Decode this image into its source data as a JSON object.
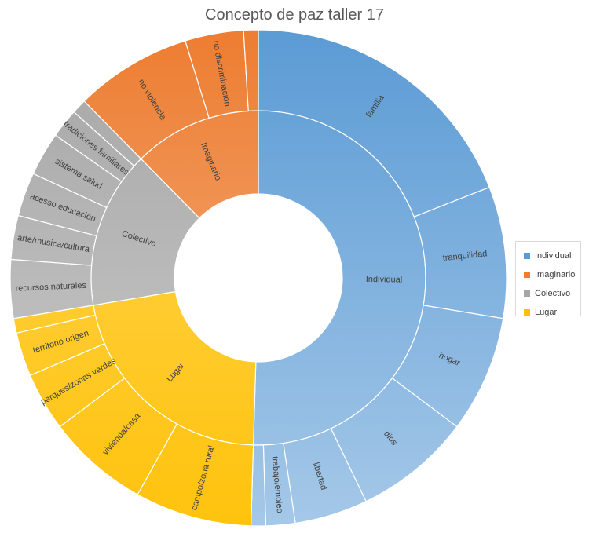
{
  "chart_data": {
    "type": "sunburst",
    "title": "Concepto de paz taller 17",
    "legend_position": "right",
    "categories": [
      {
        "name": "Individual",
        "color": "#5b9bd5",
        "children": [
          {
            "name": "familia",
            "value": 20
          },
          {
            "name": "tranquilidad",
            "value": 9
          },
          {
            "name": "hogar",
            "value": 8
          },
          {
            "name": "dios",
            "value": 8
          },
          {
            "name": "libertad",
            "value": 5
          },
          {
            "name": "trabajo/empleo",
            "value": 2
          },
          {
            "name": "",
            "value": 1
          }
        ]
      },
      {
        "name": "Lugar",
        "color": "#ffc000",
        "children": [
          {
            "name": "campo/zona rural",
            "value": 8
          },
          {
            "name": "vivienda/casa",
            "value": 7
          },
          {
            "name": "parques/zonas verdes",
            "value": 4
          },
          {
            "name": "territorio origen",
            "value": 3
          },
          {
            "name": "",
            "value": 1
          }
        ]
      },
      {
        "name": "Colectivo",
        "color": "#a5a5a5",
        "children": [
          {
            "name": "recursos naturales",
            "value": 4
          },
          {
            "name": "arte/musica/cultura",
            "value": 3
          },
          {
            "name": "acesso educación",
            "value": 3
          },
          {
            "name": "sistema salud",
            "value": 3
          },
          {
            "name": "tradiciones familiares",
            "value": 2
          },
          {
            "name": "",
            "value": 1
          }
        ]
      },
      {
        "name": "Imaginario",
        "color": "#ed7d31",
        "children": [
          {
            "name": "no violencia",
            "value": 8
          },
          {
            "name": "no discriminacion",
            "value": 4
          },
          {
            "name": "",
            "value": 1
          }
        ]
      }
    ]
  },
  "legend": {
    "items": [
      {
        "label": "Individual",
        "color": "#5b9bd5"
      },
      {
        "label": "Imaginario",
        "color": "#ed7d31"
      },
      {
        "label": "Colectivo",
        "color": "#a5a5a5"
      },
      {
        "label": "Lugar",
        "color": "#ffc000"
      }
    ]
  }
}
